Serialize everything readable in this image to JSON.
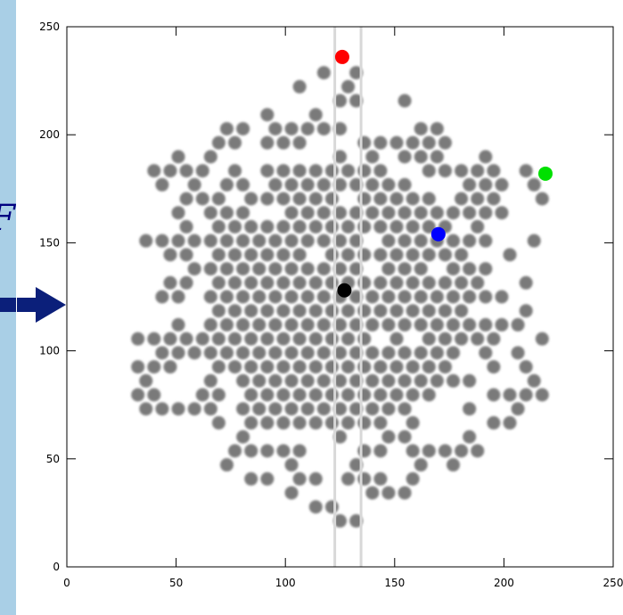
{
  "slide_label": "TF",
  "chart_data": {
    "type": "scatter",
    "xlim": [
      0,
      250
    ],
    "ylim": [
      0,
      250
    ],
    "xticks": [
      0,
      50,
      100,
      150,
      200,
      250
    ],
    "yticks": [
      0,
      50,
      100,
      150,
      200,
      250
    ],
    "series": [
      {
        "color": "#ff0000",
        "x": [
          126
        ],
        "values": [
          236
        ]
      },
      {
        "color": "#00e000",
        "x": [
          219
        ],
        "values": [
          182
        ]
      },
      {
        "color": "#0000ff",
        "x": [
          170
        ],
        "values": [
          154
        ]
      },
      {
        "color": "#000000",
        "x": [
          127
        ],
        "values": [
          128
        ]
      }
    ]
  }
}
